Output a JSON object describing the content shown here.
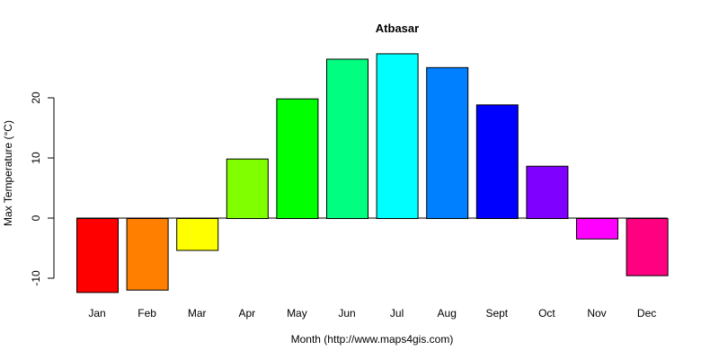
{
  "chart_data": {
    "type": "bar",
    "title": "Atbasar",
    "xlabel": "Month (http://www.maps4gis.com)",
    "ylabel": "Max Temperature (°C)",
    "categories": [
      "Jan",
      "Feb",
      "Mar",
      "Apr",
      "May",
      "Jun",
      "Jul",
      "Aug",
      "Sept",
      "Oct",
      "Nov",
      "Dec"
    ],
    "values": [
      -12.3,
      -11.9,
      -5.3,
      9.9,
      19.9,
      26.5,
      27.4,
      25.1,
      18.9,
      8.7,
      -3.4,
      -9.5
    ],
    "colors": [
      "#FF0000",
      "#FF8000",
      "#FFFF00",
      "#80FF00",
      "#00FF00",
      "#00FF80",
      "#00FFFF",
      "#0080FF",
      "#0000FF",
      "#8000FF",
      "#FF00FF",
      "#FF0080"
    ],
    "yticks": [
      -10,
      0,
      10,
      20
    ],
    "ylim": [
      -12.3,
      27.4
    ],
    "grid": false,
    "legend": "none",
    "baseline": 0
  }
}
